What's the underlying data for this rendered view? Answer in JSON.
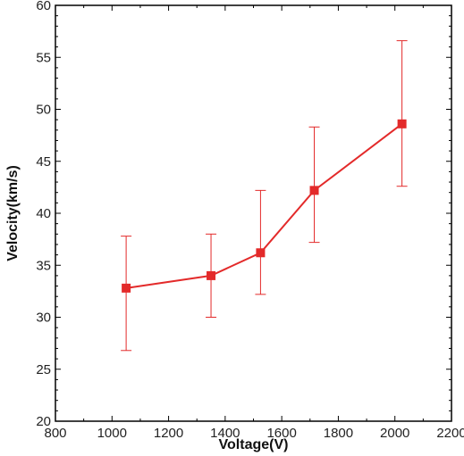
{
  "chart_data": {
    "type": "line",
    "xlabel": "Voltage(V)",
    "ylabel": "Velocity(km/s)",
    "xlim": [
      800,
      2200
    ],
    "ylim": [
      20,
      60
    ],
    "xticks": [
      800,
      1000,
      1200,
      1400,
      1600,
      1800,
      2000,
      2200
    ],
    "yticks": [
      20,
      25,
      30,
      35,
      40,
      45,
      50,
      55,
      60
    ],
    "grid": false,
    "color": "#e32a2a",
    "series": [
      {
        "x": [
          1050,
          1350,
          1525,
          1715,
          2025
        ],
        "y": [
          32.8,
          34.0,
          36.2,
          42.2,
          48.6
        ],
        "err_low": [
          26.8,
          30.0,
          32.2,
          37.2,
          42.6
        ],
        "err_high": [
          37.8,
          38.0,
          42.2,
          48.3,
          56.6
        ]
      }
    ]
  }
}
